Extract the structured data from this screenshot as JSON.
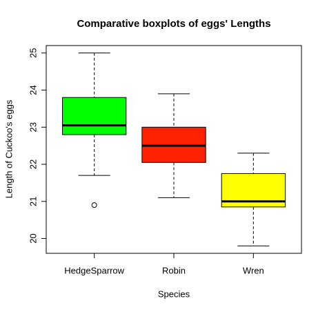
{
  "chart_data": {
    "type": "box",
    "title": "Comparative boxplots of eggs' Lengths",
    "x_label": "Species",
    "y_label": "Length of Cuckoo's eggs",
    "categories": [
      "HedgeSparrow",
      "Robin",
      "Wren"
    ],
    "colors": [
      "#00ff00",
      "#ff2200",
      "#ffff00"
    ],
    "boxes": [
      {
        "whislo": 21.7,
        "q1": 22.8,
        "med": 23.05,
        "q3": 23.8,
        "whishi": 25.0,
        "fliers": [
          20.9
        ]
      },
      {
        "whislo": 21.1,
        "q1": 22.05,
        "med": 22.5,
        "q3": 23.0,
        "whishi": 23.9,
        "fliers": []
      },
      {
        "whislo": 19.8,
        "q1": 20.85,
        "med": 21.0,
        "q3": 21.75,
        "whishi": 22.3,
        "fliers": []
      }
    ],
    "ylim": [
      19.6,
      25.2
    ],
    "yticks": [
      20,
      21,
      22,
      23,
      24,
      25
    ]
  }
}
